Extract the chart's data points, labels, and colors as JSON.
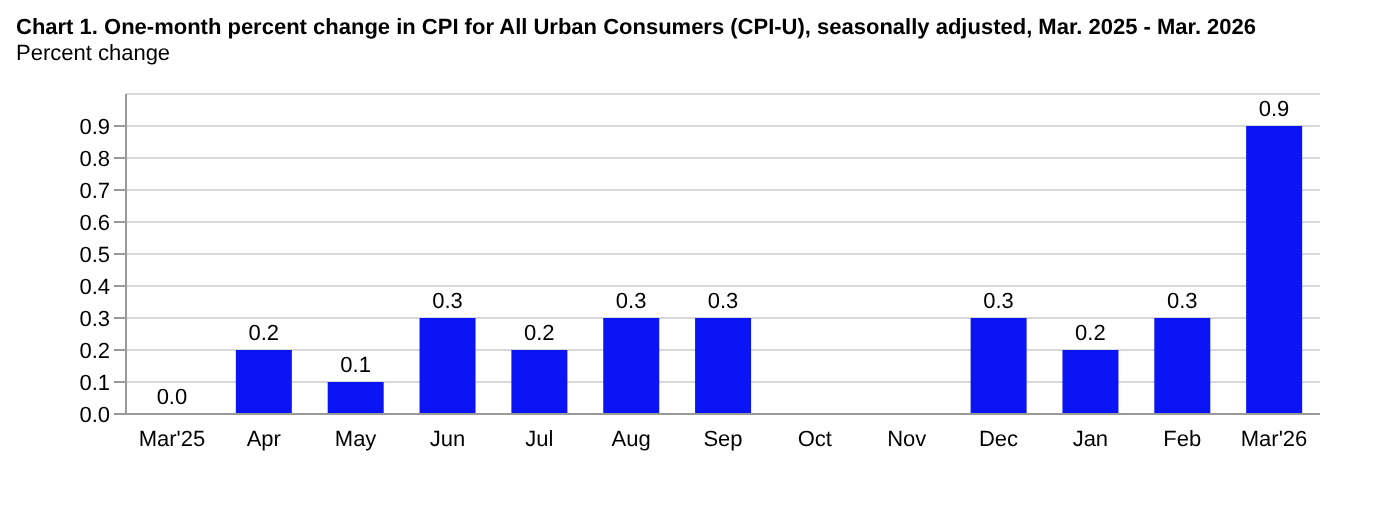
{
  "chart_data": {
    "type": "bar",
    "title": "Chart 1. One-month percent change in CPI for All Urban Consumers (CPI-U), seasonally adjusted, Mar. 2025 - Mar. 2026",
    "ylabel": "Percent change",
    "categories": [
      "Mar'25",
      "Apr",
      "May",
      "Jun",
      "Jul",
      "Aug",
      "Sep",
      "Oct",
      "Nov",
      "Dec",
      "Jan",
      "Feb",
      "Mar'26"
    ],
    "values": [
      0.0,
      0.2,
      0.1,
      0.3,
      0.2,
      0.3,
      0.3,
      null,
      null,
      0.3,
      0.2,
      0.3,
      0.9
    ],
    "value_labels": [
      "0.0",
      "0.2",
      "0.1",
      "0.3",
      "0.2",
      "0.3",
      "0.3",
      null,
      null,
      "0.3",
      "0.2",
      "0.3",
      "0.9"
    ],
    "color": "#0a14f5",
    "ylim": [
      0,
      1.0
    ],
    "yticks": [
      {
        "value": 0,
        "label": "0.0"
      },
      0.1,
      0.2,
      0.3,
      0.4,
      0.5,
      0.6,
      0.7,
      0.8,
      0.9
    ],
    "grid": "y"
  }
}
